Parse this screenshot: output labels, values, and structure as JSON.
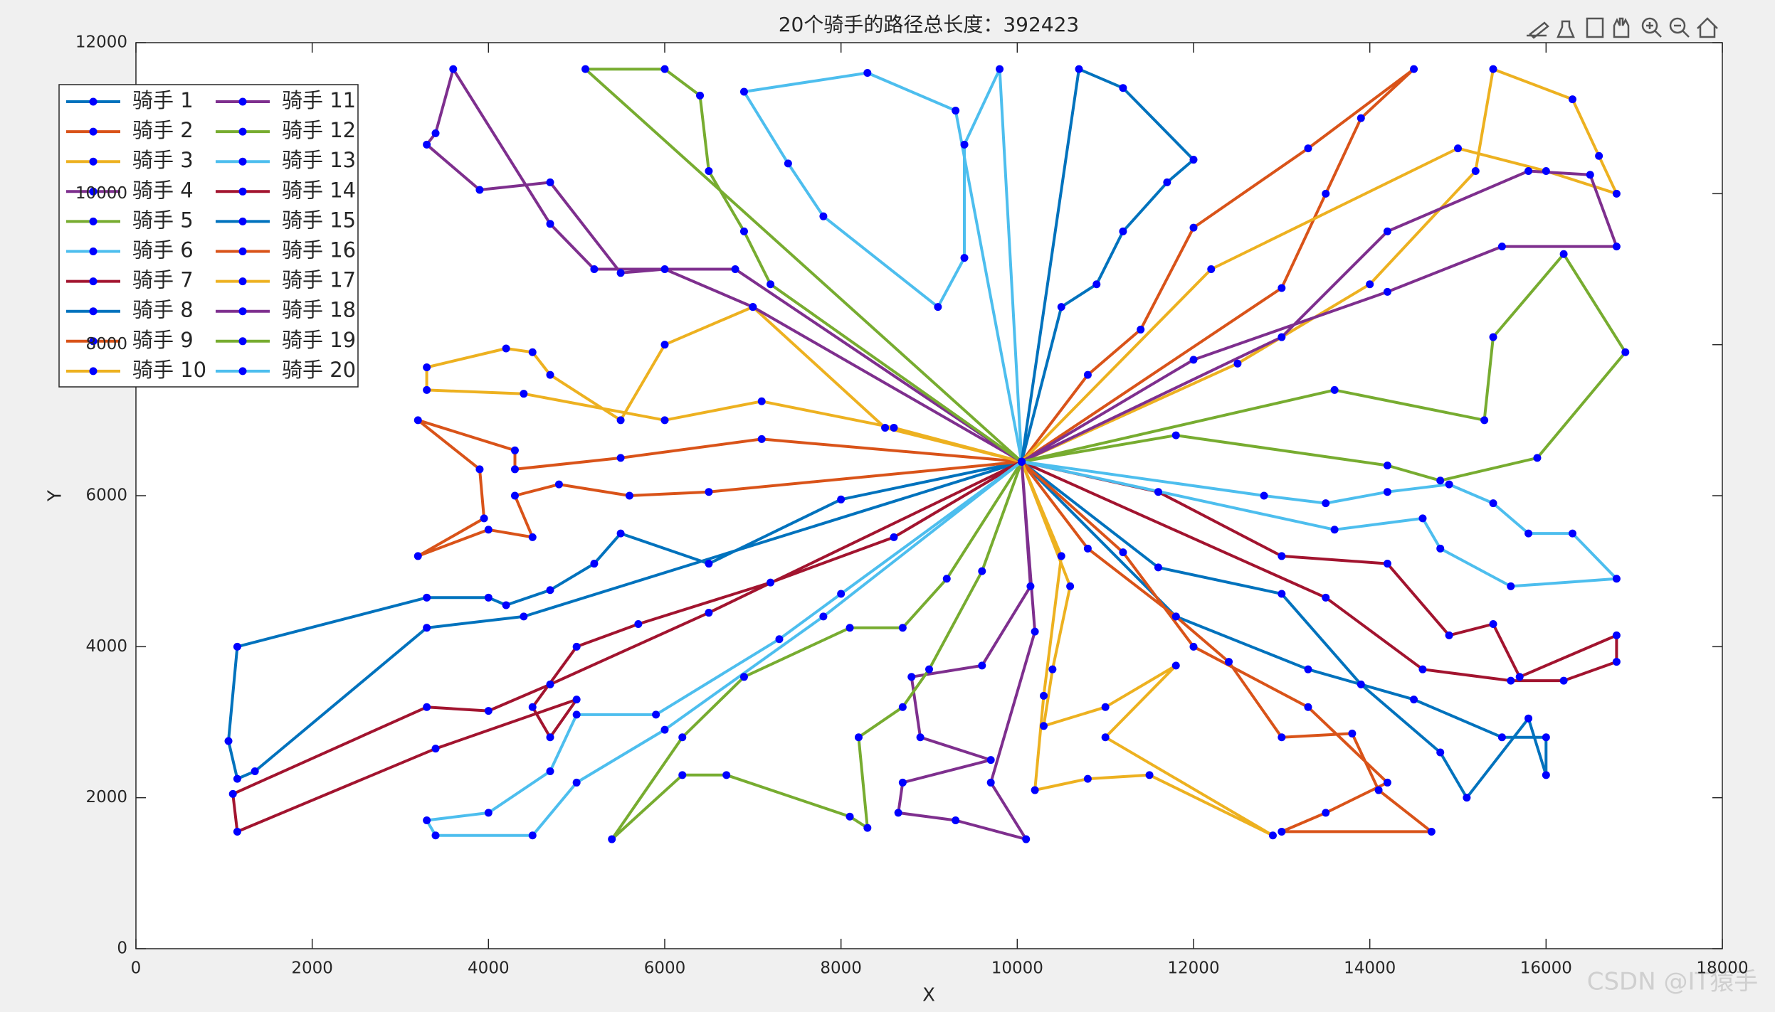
{
  "chart_data": {
    "type": "line",
    "title": "20个骑手的路径总长度：392423",
    "xlabel": "X",
    "ylabel": "Y",
    "xlim": [
      0,
      18000
    ],
    "ylim": [
      0,
      12000
    ],
    "xticks": [
      0,
      2000,
      4000,
      6000,
      8000,
      10000,
      12000,
      14000,
      16000,
      18000
    ],
    "yticks": [
      0,
      2000,
      4000,
      6000,
      8000,
      10000,
      12000
    ],
    "legend": "upper left",
    "marker_color": "#0000ff",
    "series": [
      {
        "name": "骑手 1",
        "color": "#0072BD",
        "x": [
          10050,
          4400,
          3300,
          1350,
          1150,
          1050,
          1150,
          3300,
          4000,
          4200,
          4700,
          5200,
          5500,
          6500,
          8000,
          10050
        ],
        "values": [
          6450,
          4400,
          4250,
          2350,
          2250,
          2750,
          4000,
          4650,
          4650,
          4550,
          4750,
          5100,
          5500,
          5100,
          5950,
          6450
        ]
      },
      {
        "name": "骑手 2",
        "color": "#D95319",
        "x": [
          10050,
          7100,
          5500,
          4300,
          4300,
          3200,
          3900,
          3950,
          3200,
          4000,
          4500,
          4300,
          4800,
          5600,
          6500,
          10050
        ],
        "values": [
          6450,
          6750,
          6500,
          6350,
          6600,
          7000,
          6350,
          5700,
          5200,
          5550,
          5450,
          6000,
          6150,
          6000,
          6050,
          6450
        ]
      },
      {
        "name": "骑手 3",
        "color": "#EDB120",
        "x": [
          10050,
          8600,
          7100,
          6000,
          4400,
          3300,
          3300,
          4200,
          4500,
          4700,
          5500,
          6000,
          7000,
          8500,
          10050
        ],
        "values": [
          6450,
          6900,
          7250,
          7000,
          7350,
          7400,
          7700,
          7950,
          7900,
          7600,
          7000,
          8000,
          8500,
          6900,
          6450
        ]
      },
      {
        "name": "骑手 4",
        "color": "#7E2F8E",
        "x": [
          10050,
          6800,
          5200,
          4700,
          3600,
          3400,
          3300,
          3900,
          4700,
          5500,
          6000,
          7000,
          10050
        ],
        "values": [
          6450,
          9000,
          9000,
          9600,
          11650,
          10800,
          10650,
          10050,
          10150,
          8950,
          9000,
          8500,
          6450
        ]
      },
      {
        "name": "骑手 5",
        "color": "#77AC30",
        "x": [
          10050,
          5100,
          6000,
          6400,
          6500,
          6900,
          7200,
          10050
        ],
        "values": [
          6450,
          11650,
          11650,
          11300,
          10300,
          9500,
          8800,
          6450
        ]
      },
      {
        "name": "骑手 6",
        "color": "#4DBEEE",
        "x": [
          10050,
          9800,
          9400,
          9400,
          9100,
          7800,
          7400,
          6900,
          8300,
          9300,
          10050
        ],
        "values": [
          6450,
          11650,
          10650,
          9150,
          8500,
          9700,
          10400,
          11350,
          11600,
          11100,
          6450
        ]
      },
      {
        "name": "骑手 7",
        "color": "#A2142F",
        "x": [
          10050,
          11600,
          13000,
          14200,
          14900,
          15400,
          15700,
          16800,
          16800,
          16200,
          15600,
          14600,
          13500,
          10050
        ],
        "values": [
          6450,
          6050,
          5200,
          5100,
          4150,
          4300,
          3600,
          4150,
          3800,
          3550,
          3550,
          3700,
          4650,
          6450
        ]
      },
      {
        "name": "骑手 8",
        "color": "#0072BD",
        "x": [
          10050,
          10700,
          11200,
          12000,
          11700,
          11200,
          10900,
          10500,
          10050
        ],
        "values": [
          6450,
          11650,
          11400,
          10450,
          10150,
          9500,
          8800,
          8500,
          6450
        ]
      },
      {
        "name": "骑手 9",
        "color": "#D95319",
        "x": [
          10050,
          10800,
          11400,
          12000,
          13300,
          14500,
          13900,
          13500,
          13000,
          10050
        ],
        "values": [
          6450,
          7600,
          8200,
          9550,
          10600,
          11650,
          11000,
          10000,
          8750,
          6450
        ]
      },
      {
        "name": "骑手 10",
        "color": "#EDB120",
        "x": [
          10050,
          12500,
          14000,
          15200,
          15400,
          16300,
          16600,
          16800,
          16000,
          15000,
          12200,
          10050
        ],
        "values": [
          6450,
          7750,
          8800,
          10300,
          11650,
          11250,
          10500,
          10000,
          10300,
          10600,
          9000,
          6450
        ]
      },
      {
        "name": "骑手 11",
        "color": "#7E2F8E",
        "x": [
          10050,
          12000,
          14200,
          15500,
          16800,
          16500,
          15800,
          14200,
          13000,
          10050
        ],
        "values": [
          6450,
          7800,
          8700,
          9300,
          9300,
          10250,
          10300,
          9500,
          8100,
          6450
        ]
      },
      {
        "name": "骑手 12",
        "color": "#77AC30",
        "x": [
          10050,
          11800,
          14200,
          14800,
          15900,
          16900,
          16200,
          15400,
          15300,
          13600,
          10050
        ],
        "values": [
          6450,
          6800,
          6400,
          6200,
          6500,
          7900,
          9200,
          8100,
          7000,
          7400,
          6450
        ]
      },
      {
        "name": "骑手 13",
        "color": "#4DBEEE",
        "x": [
          10050,
          12800,
          13500,
          14200,
          14900,
          15400,
          15800,
          16300,
          16800,
          15600,
          14800,
          14600,
          13600,
          10050
        ],
        "values": [
          6450,
          6000,
          5900,
          6050,
          6150,
          5900,
          5500,
          5500,
          4900,
          4800,
          5300,
          5700,
          5550,
          6450
        ]
      },
      {
        "name": "骑手 14",
        "color": "#A2142F",
        "x": [
          10050,
          8600,
          7200,
          5700,
          5000,
          4500,
          4700,
          5000,
          3400,
          1150,
          1100,
          3300,
          4000,
          4700,
          6500,
          10050
        ],
        "values": [
          6450,
          5450,
          4850,
          4300,
          4000,
          3200,
          2800,
          3300,
          2650,
          1550,
          2050,
          3200,
          3150,
          3500,
          4450,
          6450
        ]
      },
      {
        "name": "骑手 15",
        "color": "#0072BD",
        "x": [
          10050,
          11600,
          13000,
          13900,
          14800,
          15100,
          15800,
          16000,
          16000,
          15500,
          14500,
          13300,
          11800,
          10050
        ],
        "values": [
          6450,
          5050,
          4700,
          3500,
          2600,
          2000,
          3050,
          2300,
          2800,
          2800,
          3300,
          3700,
          4400,
          6450
        ]
      },
      {
        "name": "骑手 16",
        "color": "#D95319",
        "x": [
          10050,
          10800,
          11800,
          12400,
          13000,
          13800,
          14100,
          14700,
          13000,
          13500,
          14200,
          13300,
          12000,
          11200,
          10050
        ],
        "values": [
          6450,
          5300,
          4400,
          3800,
          2800,
          2850,
          2100,
          1550,
          1550,
          1800,
          2200,
          3200,
          4000,
          5250,
          6450
        ]
      },
      {
        "name": "骑手 17",
        "color": "#EDB120",
        "x": [
          10050,
          10600,
          10400,
          10300,
          11000,
          11800,
          11000,
          12900,
          11500,
          10800,
          10200,
          10300,
          10500,
          10050
        ],
        "values": [
          6450,
          4800,
          3700,
          2950,
          3200,
          3750,
          2800,
          1500,
          2300,
          2250,
          2100,
          3350,
          5200,
          6450
        ]
      },
      {
        "name": "骑手 18",
        "color": "#7E2F8E",
        "x": [
          10050,
          10150,
          9600,
          8800,
          8900,
          9700,
          8700,
          8650,
          9300,
          10100,
          9700,
          10200,
          10050
        ],
        "values": [
          6450,
          4800,
          3750,
          3600,
          2800,
          2500,
          2200,
          1800,
          1700,
          1450,
          2200,
          4200,
          6450
        ]
      },
      {
        "name": "骑手 19",
        "color": "#77AC30",
        "x": [
          10050,
          9200,
          8700,
          8100,
          6900,
          6200,
          5400,
          6200,
          6700,
          8100,
          8300,
          8200,
          8700,
          9000,
          9600,
          10050
        ],
        "values": [
          6450,
          4900,
          4250,
          4250,
          3600,
          2800,
          1450,
          2300,
          2300,
          1750,
          1600,
          2800,
          3200,
          3700,
          5000,
          6450
        ]
      },
      {
        "name": "骑手 20",
        "color": "#4DBEEE",
        "x": [
          10050,
          8000,
          7300,
          5900,
          5000,
          4700,
          4000,
          3300,
          3400,
          4500,
          5000,
          6000,
          7800,
          10050
        ],
        "values": [
          6450,
          4700,
          4100,
          3100,
          3100,
          2350,
          1800,
          1700,
          1500,
          1500,
          2200,
          2900,
          4400,
          6450
        ]
      }
    ]
  },
  "watermark": "CSDN @IT猿手"
}
